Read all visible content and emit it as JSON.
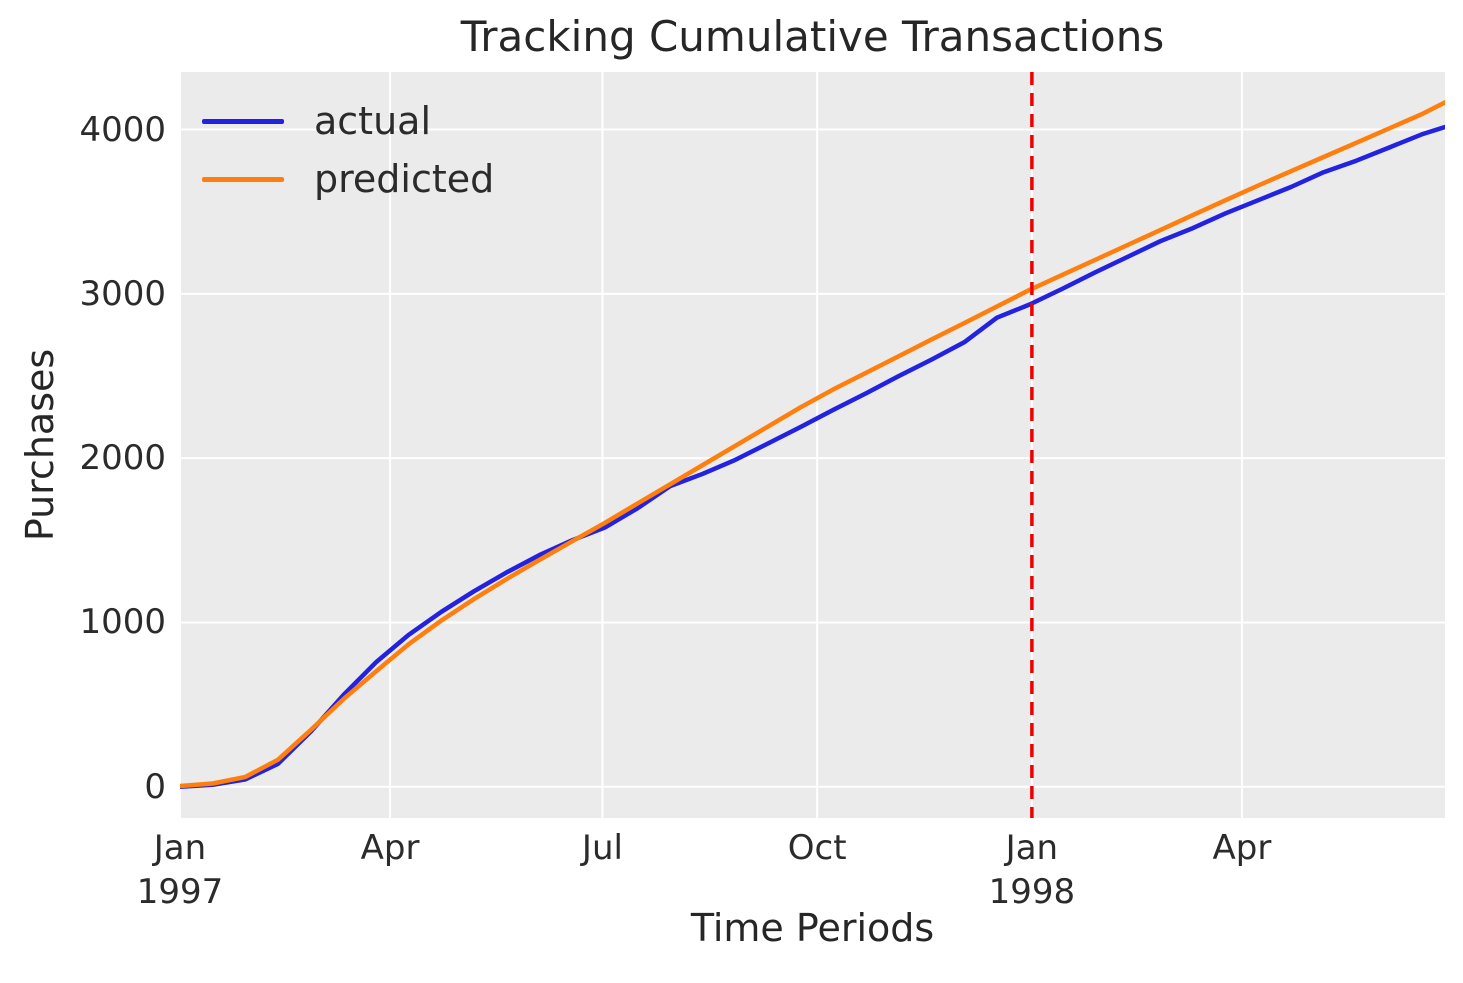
{
  "chart_data": {
    "type": "line",
    "title": "Tracking Cumulative Transactions",
    "xlabel": "Time Periods",
    "ylabel": "Purchases",
    "x_unit_note": "days since Jan 1 1997 (weekly cumulative transaction counts)",
    "xlim": [
      0,
      542
    ],
    "ylim": [
      -190,
      4350
    ],
    "grid": true,
    "plot_background": "#ebebeb",
    "grid_color": "#ffffff",
    "y_ticks": [
      0,
      1000,
      2000,
      3000,
      4000
    ],
    "x_ticks": [
      {
        "pos": 0,
        "label": "Jan",
        "sublabel": "1997"
      },
      {
        "pos": 90,
        "label": "Apr",
        "sublabel": ""
      },
      {
        "pos": 181,
        "label": "Jul",
        "sublabel": ""
      },
      {
        "pos": 273,
        "label": "Oct",
        "sublabel": ""
      },
      {
        "pos": 365,
        "label": "Jan",
        "sublabel": "1998"
      },
      {
        "pos": 455,
        "label": "Apr",
        "sublabel": ""
      }
    ],
    "vline": {
      "x": 365,
      "color": "#ee0000",
      "style": "dashed",
      "width": 3.5
    },
    "legend_position": "upper-left",
    "x": [
      0,
      14,
      28,
      42,
      56,
      70,
      84,
      98,
      112,
      126,
      140,
      154,
      168,
      182,
      196,
      210,
      224,
      238,
      252,
      266,
      280,
      294,
      308,
      322,
      336,
      350,
      364,
      378,
      392,
      406,
      420,
      434,
      448,
      462,
      476,
      490,
      504,
      518,
      532,
      542
    ],
    "series": [
      {
        "name": "actual",
        "color": "#2222e0",
        "values": [
          0,
          12,
          45,
          140,
          335,
          558,
          758,
          925,
          1065,
          1190,
          1305,
          1410,
          1500,
          1578,
          1695,
          1830,
          1905,
          1990,
          2090,
          2190,
          2295,
          2395,
          2500,
          2600,
          2705,
          2855,
          2935,
          3030,
          3130,
          3225,
          3320,
          3400,
          3490,
          3570,
          3650,
          3740,
          3810,
          3890,
          3970,
          4015
        ]
      },
      {
        "name": "predicted",
        "color": "#ff7f0e",
        "values": [
          5,
          20,
          60,
          165,
          345,
          533,
          703,
          868,
          1012,
          1143,
          1265,
          1381,
          1494,
          1606,
          1724,
          1841,
          1958,
          2076,
          2193,
          2310,
          2419,
          2520,
          2621,
          2722,
          2822,
          2923,
          3024,
          3115,
          3206,
          3297,
          3388,
          3479,
          3570,
          3659,
          3746,
          3833,
          3919,
          4006,
          4093,
          4165
        ]
      }
    ]
  }
}
